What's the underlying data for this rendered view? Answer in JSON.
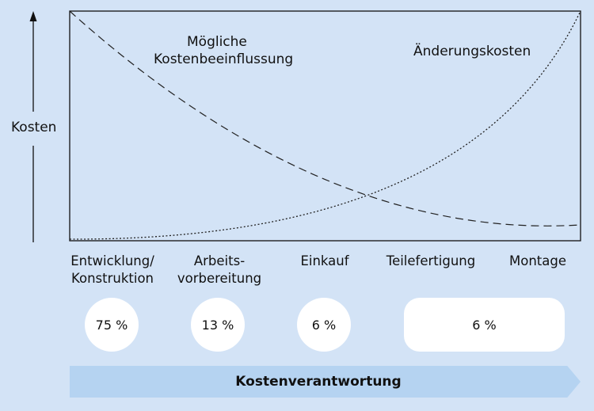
{
  "axis": {
    "ylabel": "Kosten"
  },
  "curves": {
    "influence_label_line1": "Mögliche",
    "influence_label_line2": "Kostenbeeinflussung",
    "change_label": "Änderungskosten"
  },
  "phases": [
    {
      "line1": "Entwicklung/",
      "line2": "Konstruktion",
      "share": "75 %"
    },
    {
      "line1": "Arbeits-",
      "line2": "vorbereitung",
      "share": "13 %"
    },
    {
      "line1": "Einkauf",
      "line2": "",
      "share": "6 %"
    },
    {
      "line1": "Teilefertigung",
      "line2": "",
      "share": ""
    },
    {
      "line1": "Montage",
      "line2": "",
      "share": ""
    }
  ],
  "combined_share": "6 %",
  "band_label": "Kostenverantwortung",
  "colors": {
    "background": "#d3e3f6",
    "band": "#b5d3f1",
    "bubble": "#ffffff"
  }
}
